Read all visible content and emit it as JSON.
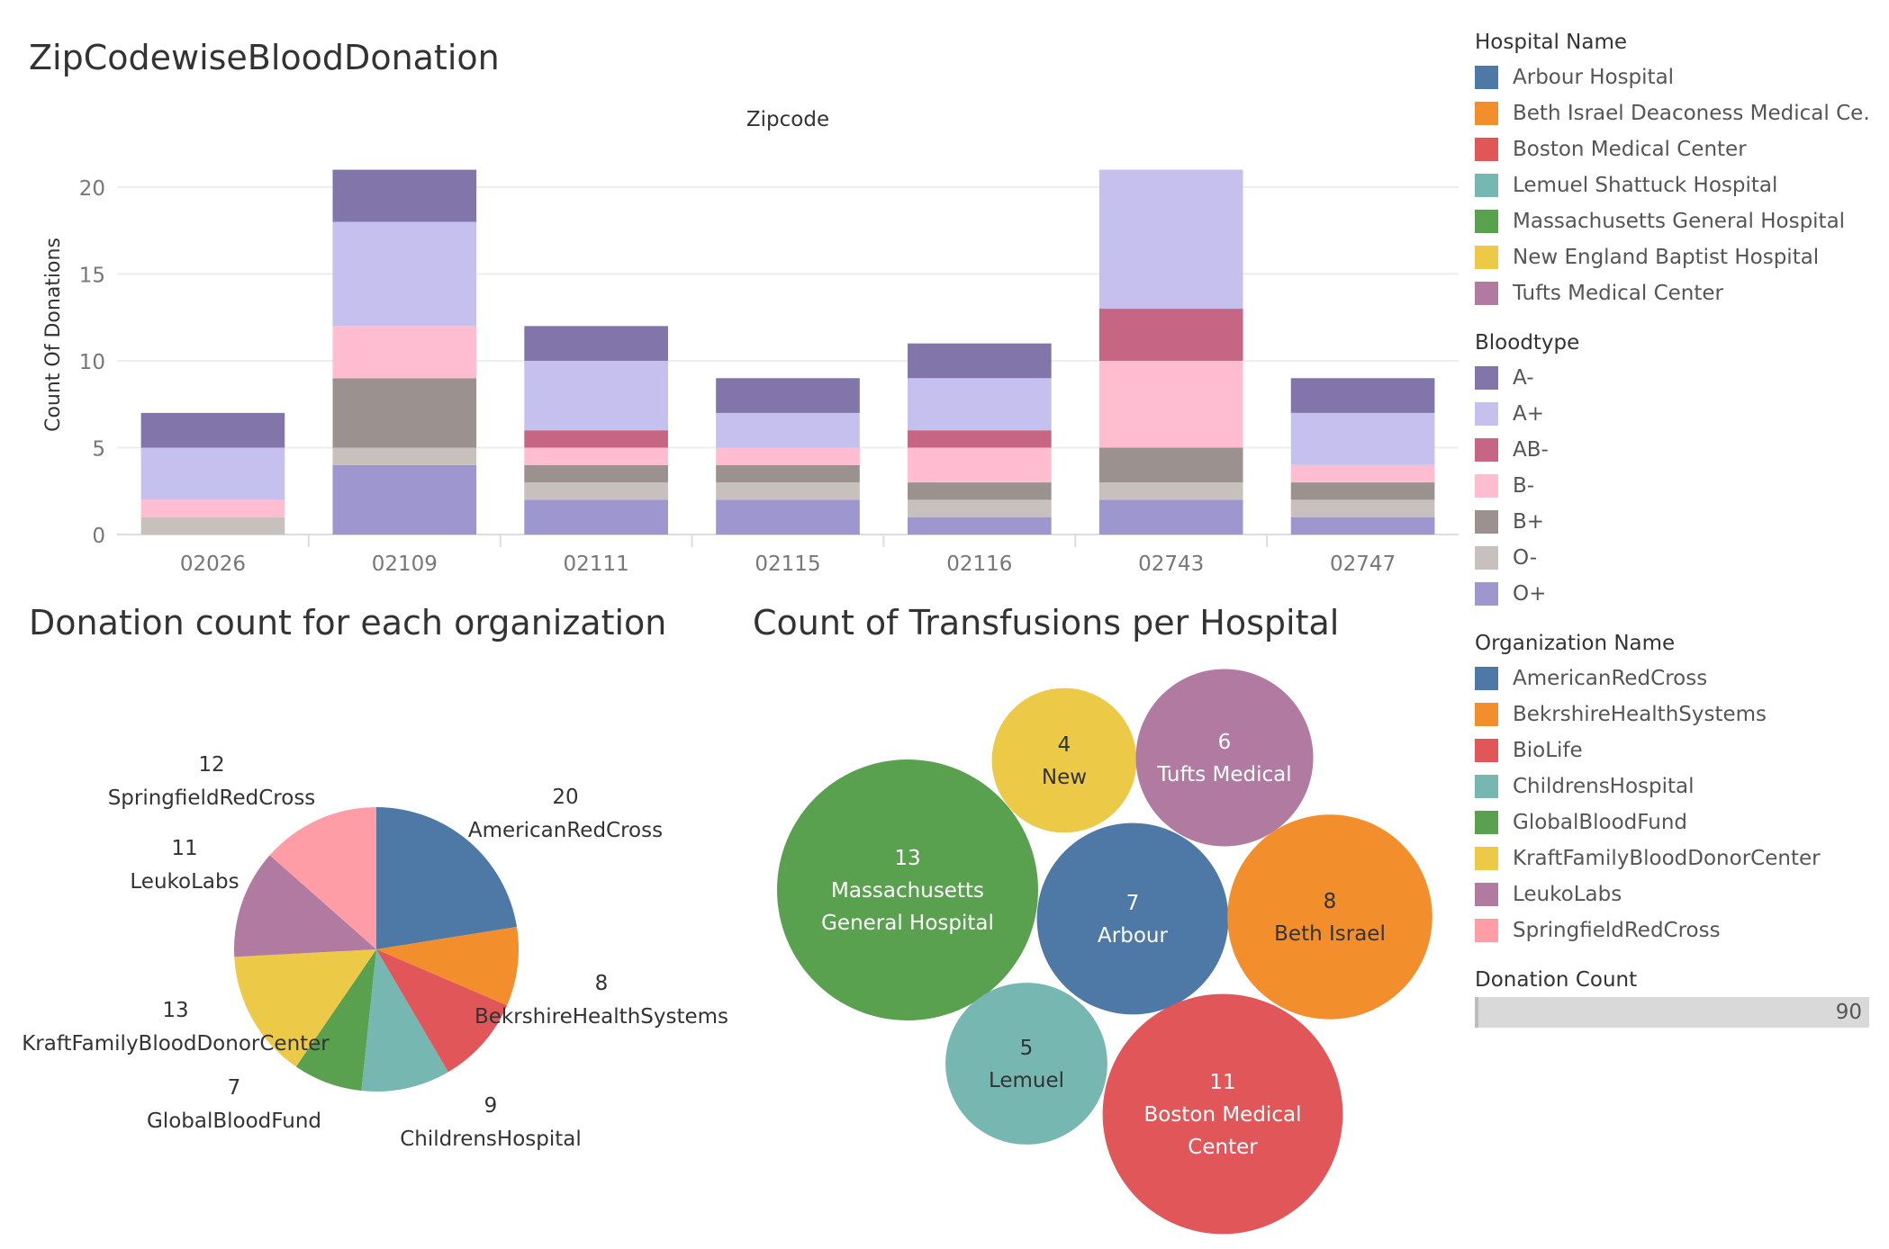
{
  "titles": {
    "bar": "ZipCodewiseBloodDonation",
    "pie": "Donation count for each organization",
    "bubble": "Count of Transfusions per Hospital"
  },
  "colors": {
    "bloodtype": {
      "A-": "#8175aa",
      "A+": "#c6c0ef",
      "AB-": "#c66684",
      "B-": "#ffbdd2",
      "B+": "#9b918e",
      "O-": "#c7c0bc",
      "O+": "#9d96cf"
    },
    "hospital": {
      "Arbour Hospital": "#4e79a7",
      "Beth Israel Deaconess Medical Ce..": "#f28e2b",
      "Boston Medical Center": "#e15759",
      "Lemuel Shattuck Hospital": "#76b7b2",
      "Massachusetts General Hospital": "#59a14f",
      "New England Baptist Hospital": "#edc948",
      "Tufts Medical Center": "#b07aa1"
    },
    "organization": {
      "AmericanRedCross": "#4e79a7",
      "BekrshireHealthSystems": "#f28e2b",
      "BioLife": "#e15759",
      "ChildrensHospital": "#76b7b2",
      "GlobalBloodFund": "#59a14f",
      "KraftFamilyBloodDonorCenter": "#edc948",
      "LeukoLabs": "#b07aa1",
      "SpringfieldRedCross": "#ff9da7"
    }
  },
  "chart_data": [
    {
      "type": "bar",
      "stacked": true,
      "header": "Zipcode",
      "ylabel": "Count Of Donations",
      "ylim": [
        0,
        23
      ],
      "yticks": [
        0,
        5,
        10,
        15,
        20
      ],
      "grid": true,
      "categories": [
        "02026",
        "02109",
        "02111",
        "02115",
        "02116",
        "02743",
        "02747"
      ],
      "series": [
        {
          "name": "O+",
          "values": [
            0,
            4,
            2,
            2,
            1,
            2,
            1
          ]
        },
        {
          "name": "O-",
          "values": [
            1,
            1,
            1,
            1,
            1,
            1,
            1
          ]
        },
        {
          "name": "B+",
          "values": [
            0,
            4,
            1,
            1,
            1,
            2,
            1
          ]
        },
        {
          "name": "B-",
          "values": [
            1,
            3,
            1,
            1,
            2,
            5,
            1
          ]
        },
        {
          "name": "AB-",
          "values": [
            0,
            0,
            1,
            0,
            1,
            3,
            0
          ]
        },
        {
          "name": "A+",
          "values": [
            3,
            6,
            4,
            2,
            3,
            8,
            3
          ]
        },
        {
          "name": "A-",
          "values": [
            2,
            3,
            2,
            2,
            2,
            0,
            2
          ]
        }
      ]
    },
    {
      "type": "pie",
      "slices": [
        {
          "label": "AmericanRedCross",
          "value": 20
        },
        {
          "label": "BekrshireHealthSystems",
          "value": 8
        },
        {
          "label": "BioLife",
          "value": 9
        },
        {
          "label": "ChildrensHospital",
          "value": 9
        },
        {
          "label": "GlobalBloodFund",
          "value": 7
        },
        {
          "label": "KraftFamilyBloodDonorCenter",
          "value": 13
        },
        {
          "label": "LeukoLabs",
          "value": 11
        },
        {
          "label": "SpringfieldRedCross",
          "value": 12
        }
      ],
      "labels": [
        {
          "name": "SpringfieldRedCross",
          "value": "12"
        },
        {
          "name": "AmericanRedCross",
          "value": "20"
        },
        {
          "name": "LeukoLabs",
          "value": "11"
        },
        {
          "name": "BekrshireHealthSystems",
          "value": "8"
        },
        {
          "name": "KraftFamilyBloodDonorCenter",
          "value": "13"
        },
        {
          "name": "GlobalBloodFund",
          "value": "7"
        },
        {
          "name": "ChildrensHospital",
          "value": "9"
        }
      ]
    },
    {
      "type": "bubble",
      "bubbles": [
        {
          "hospital": "New England Baptist Hospital",
          "value": 4,
          "text": [
            "4",
            "New"
          ],
          "text_color": "#333333"
        },
        {
          "hospital": "Tufts Medical Center",
          "value": 6,
          "text": [
            "6",
            "Tufts Medical"
          ],
          "text_color": "#ffffff"
        },
        {
          "hospital": "Massachusetts General Hospital",
          "value": 13,
          "text": [
            "13",
            "Massachusetts",
            "General Hospital"
          ],
          "text_color": "#ffffff"
        },
        {
          "hospital": "Arbour Hospital",
          "value": 7,
          "text": [
            "7",
            "Arbour"
          ],
          "text_color": "#ffffff"
        },
        {
          "hospital": "Beth Israel Deaconess Medical Ce..",
          "value": 8,
          "text": [
            "8",
            "Beth Israel"
          ],
          "text_color": "#333333"
        },
        {
          "hospital": "Lemuel Shattuck Hospital",
          "value": 5,
          "text": [
            "5",
            "Lemuel"
          ],
          "text_color": "#333333"
        },
        {
          "hospital": "Boston Medical Center",
          "value": 11,
          "text": [
            "11",
            "Boston Medical",
            "Center"
          ],
          "text_color": "#ffffff"
        }
      ]
    }
  ],
  "legends": {
    "hospital": {
      "title": "Hospital Name",
      "items": [
        "Arbour Hospital",
        "Beth Israel Deaconess Medical Ce..",
        "Boston Medical Center",
        "Lemuel Shattuck Hospital",
        "Massachusetts General Hospital",
        "New England Baptist Hospital",
        "Tufts Medical Center"
      ]
    },
    "bloodtype": {
      "title": "Bloodtype",
      "items": [
        "A-",
        "A+",
        "AB-",
        "B-",
        "B+",
        "O-",
        "O+"
      ]
    },
    "organization": {
      "title": "Organization Name",
      "items": [
        "AmericanRedCross",
        "BekrshireHealthSystems",
        "BioLife",
        "ChildrensHospital",
        "GlobalBloodFund",
        "KraftFamilyBloodDonorCenter",
        "LeukoLabs",
        "SpringfieldRedCross"
      ]
    },
    "donation_count": {
      "title": "Donation Count",
      "value": "90"
    }
  }
}
